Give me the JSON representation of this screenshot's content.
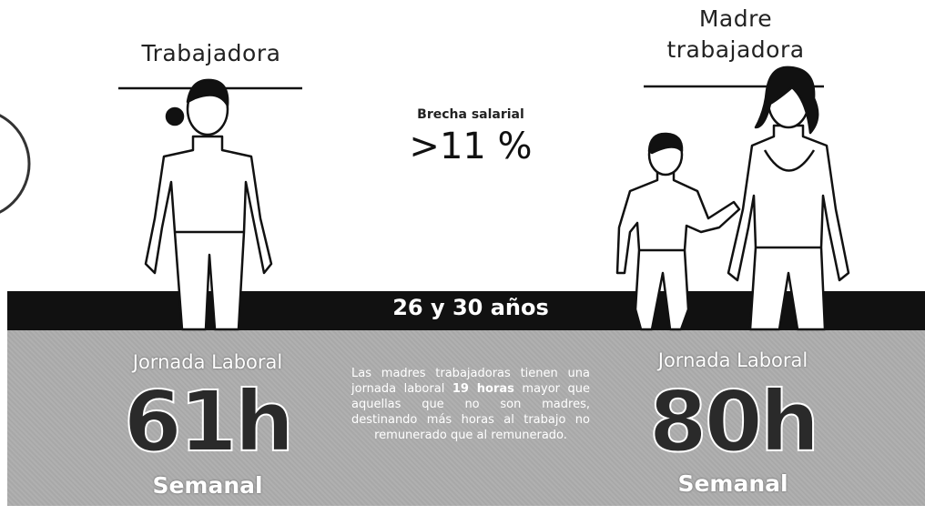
{
  "left": {
    "title": "Trabajadora",
    "label": "Jornada Laboral",
    "hours": "61h",
    "unit": "Semanal"
  },
  "right": {
    "title_line1": "Madre",
    "title_line2": "trabajadora",
    "label": "Jornada Laboral",
    "hours": "80h",
    "unit": "Semanal"
  },
  "gap": {
    "label": "Brecha salarial",
    "value": ">11 %"
  },
  "age_band": "26 y 30 años",
  "paragraph": {
    "before": "Las madres trabajadoras tienen una jornada laboral",
    "bold": "19 horas",
    "after": "mayor que aquellas que no son madres, destinando más horas al trabajo no remunerado que al remunerado."
  }
}
